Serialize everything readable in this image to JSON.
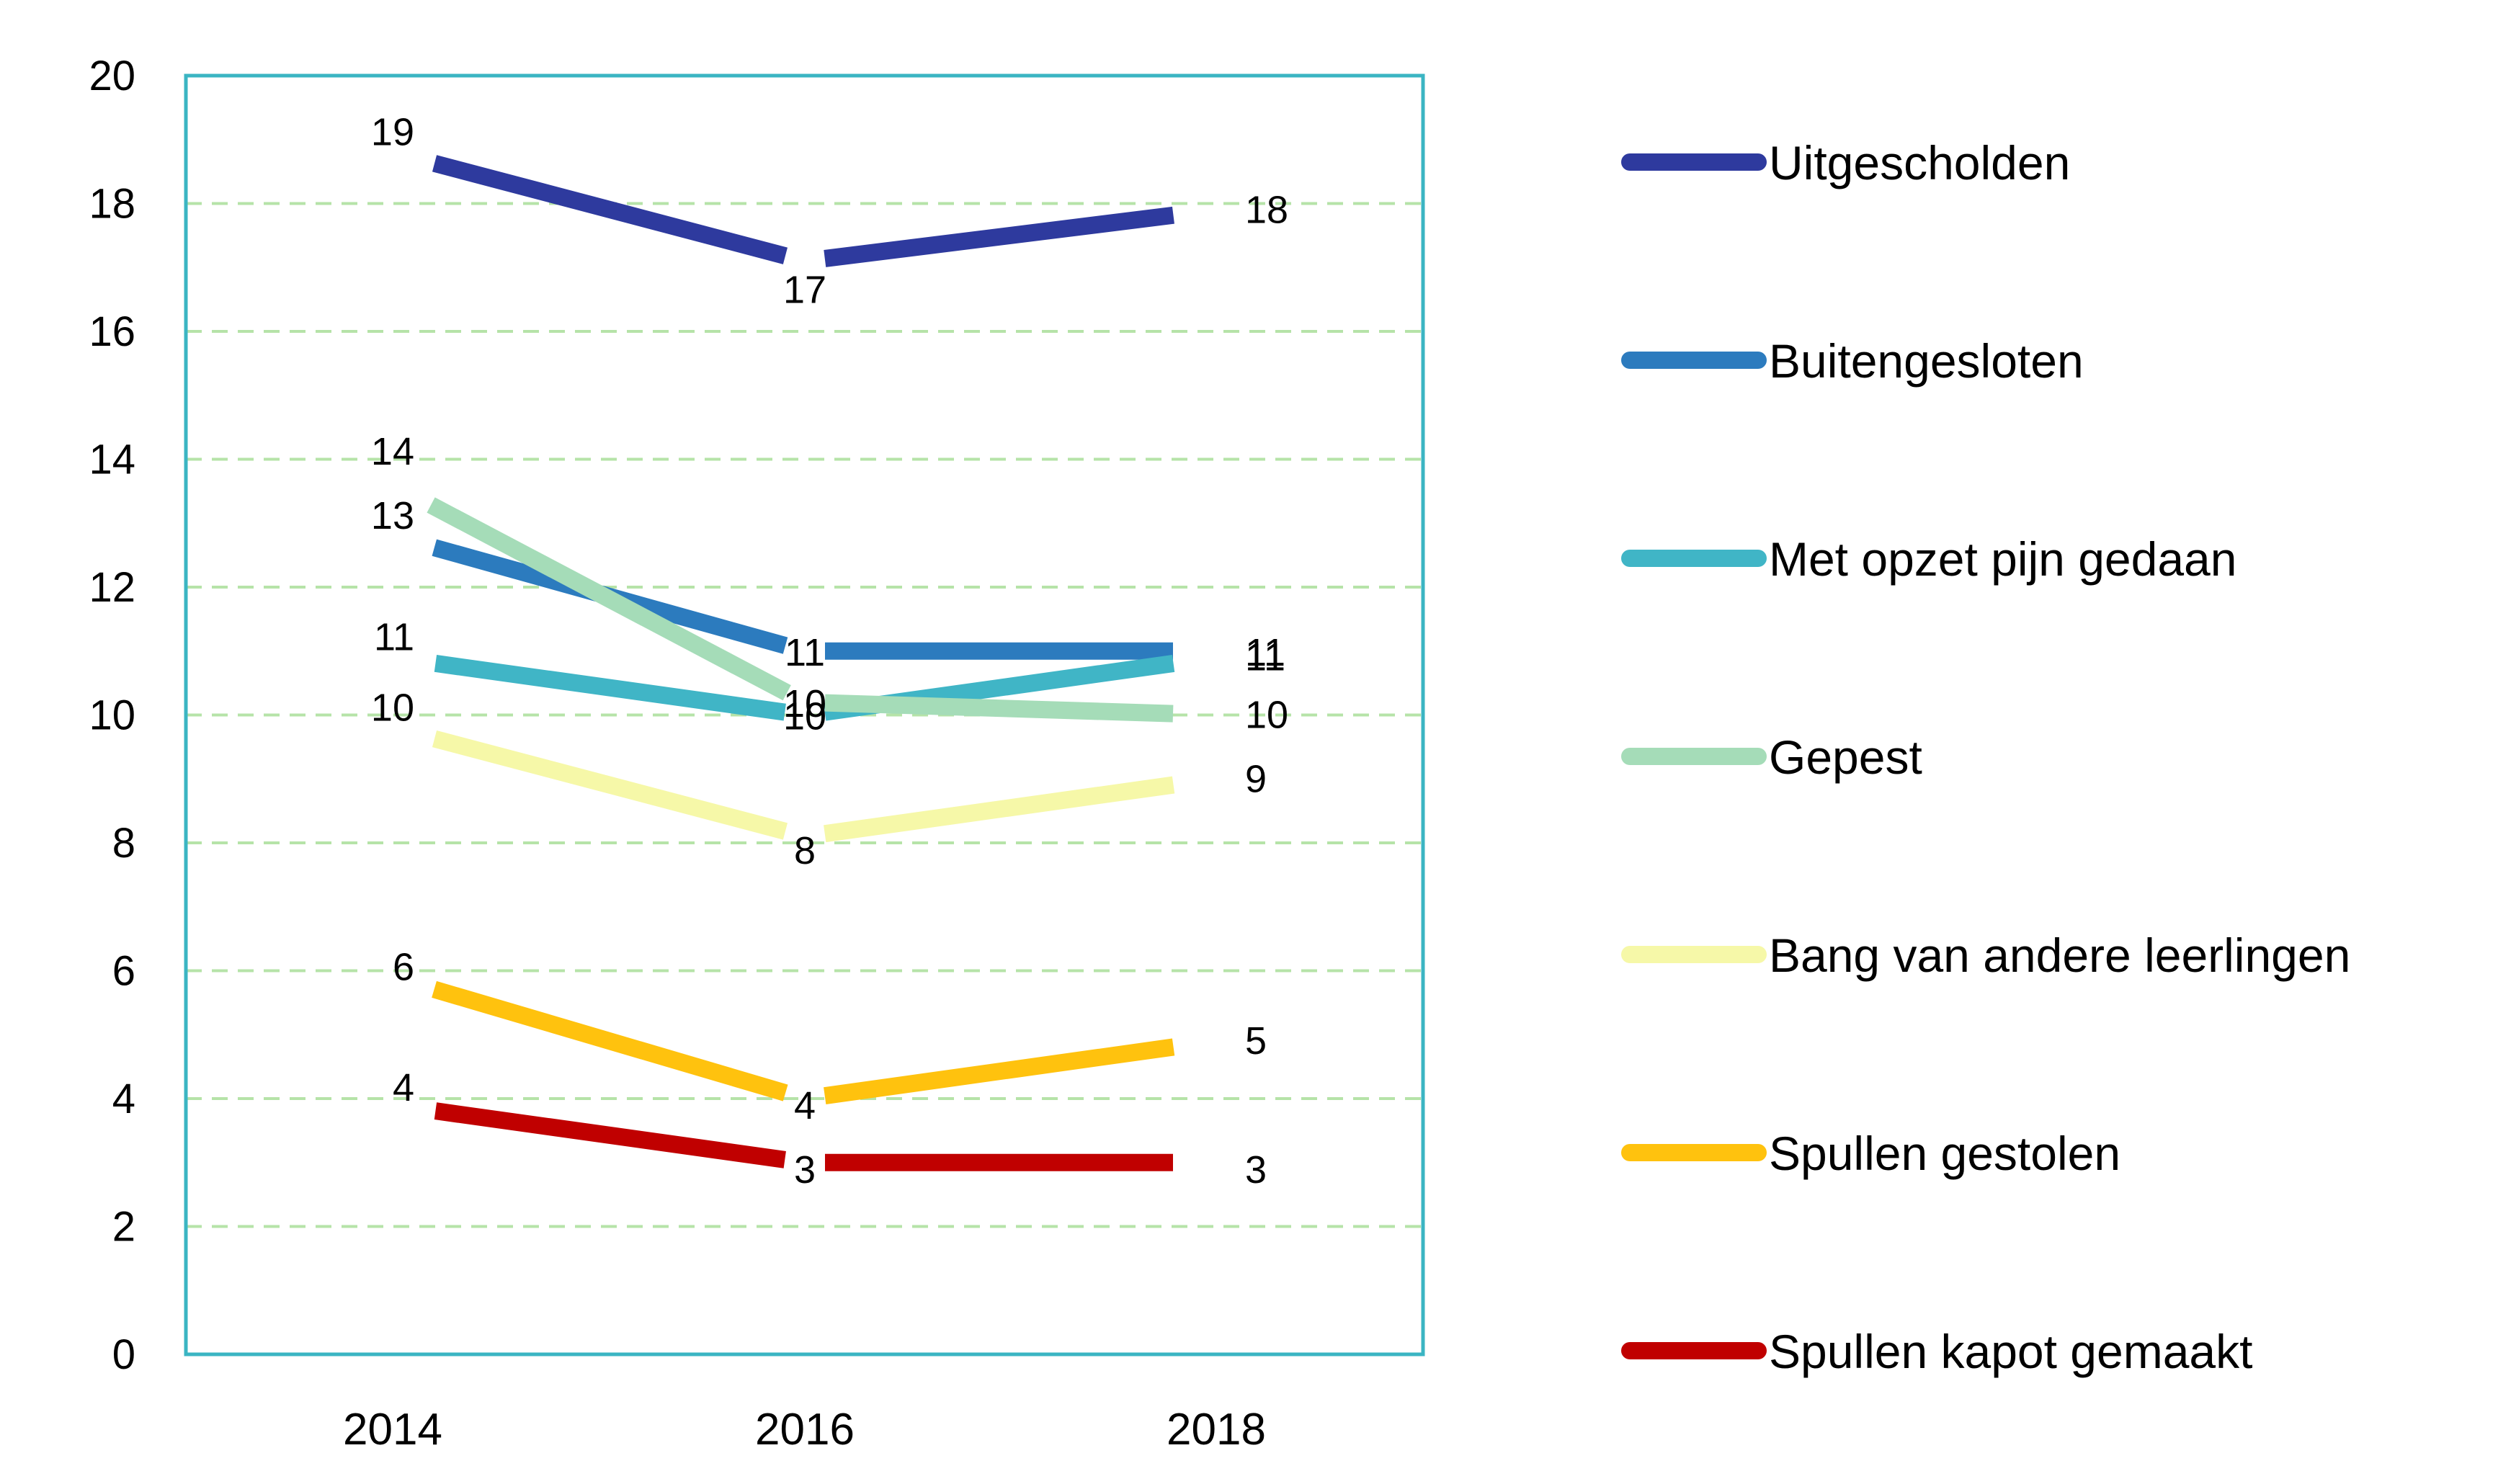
{
  "chart_data": {
    "type": "line",
    "x": [
      "2014",
      "2016",
      "2018"
    ],
    "ylim": [
      0,
      20
    ],
    "yticks": [
      "0",
      "2",
      "4",
      "6",
      "8",
      "10",
      "12",
      "14",
      "16",
      "18",
      "20"
    ],
    "grid": "horizontal dashed",
    "legend_position": "right",
    "series": [
      {
        "name": "Uitgescholden",
        "color": "#2E3A9E",
        "values": [
          18.8,
          17.1,
          17.9
        ],
        "labels": [
          "19",
          "17",
          "18"
        ]
      },
      {
        "name": "Buitengesloten",
        "color": "#2C7BBE",
        "values": [
          12.8,
          11.0,
          11.0
        ],
        "labels": [
          "13",
          "11",
          "11"
        ]
      },
      {
        "name": "Met opzet pijn gedaan",
        "color": "#40B5C6",
        "values": [
          10.9,
          10.0,
          10.9
        ],
        "labels": [
          "11",
          "10",
          "11"
        ]
      },
      {
        "name": "Gepest",
        "color": "#A5DCB8",
        "values": [
          13.6,
          10.2,
          10.0
        ],
        "labels": [
          "14",
          "10",
          "10"
        ]
      },
      {
        "name": "Bang van andere leerlingen",
        "color": "#F6F8A8",
        "values": [
          9.8,
          8.1,
          9.0
        ],
        "labels": [
          "10",
          "8",
          "9"
        ]
      },
      {
        "name": "Spullen gestolen",
        "color": "#FFC20E",
        "values": [
          5.9,
          4.0,
          4.9
        ],
        "labels": [
          "6",
          "4",
          "5"
        ]
      },
      {
        "name": "Spullen kapot gemaakt",
        "color": "#C00000",
        "values": [
          3.9,
          3.0,
          3.0
        ],
        "labels": [
          "4",
          "3",
          "3"
        ]
      }
    ],
    "colors": {
      "plot_border": "#3BB5C3",
      "grid": "#B6E3A8",
      "axis": "#3BB5C3"
    }
  }
}
